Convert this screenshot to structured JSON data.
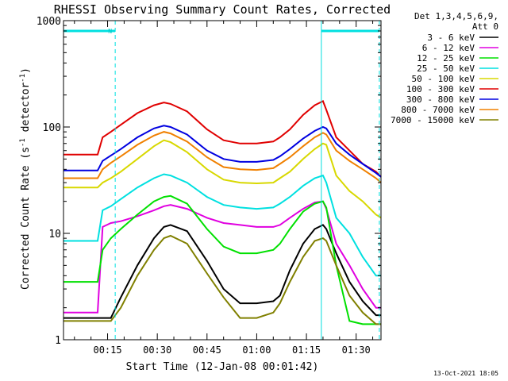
{
  "chart_data": {
    "type": "line",
    "title": "RHESSI Observing Summary Count Rates, Corrected",
    "xlabel": "Start Time (12-Jan-08 00:01:42)",
    "ylabel_main": "Corrected Count Rate (s",
    "ylabel_sup1": "-1",
    "ylabel_mid": " detector",
    "ylabel_sup2": "-1",
    "ylabel_end": ")",
    "yscale": "log",
    "ylim": [
      1,
      1000
    ],
    "xlim_minutes": [
      1.7,
      97.5
    ],
    "x_ticks": [
      {
        "v": 15,
        "label": "00:15"
      },
      {
        "v": 30,
        "label": "00:30"
      },
      {
        "v": 45,
        "label": "00:45"
      },
      {
        "v": 60,
        "label": "01:00"
      },
      {
        "v": 75,
        "label": "01:15"
      },
      {
        "v": 90,
        "label": "01:30"
      }
    ],
    "y_ticks": [
      {
        "v": 1,
        "label": "1"
      },
      {
        "v": 10,
        "label": "10"
      },
      {
        "v": 100,
        "label": "100"
      },
      {
        "v": 1000,
        "label": "1000"
      }
    ],
    "legend_header": [
      "Det 1,3,4,5,6,9,",
      "Att 0"
    ],
    "legend_position": "right",
    "timestamp": "13-Oct-2021 18:05",
    "flag_label": "N",
    "night_periods": [
      {
        "start": 1.7,
        "end": 17.3,
        "label": "N"
      },
      {
        "start": 79.5,
        "end": 97.0,
        "label": ""
      }
    ],
    "night_level": 800,
    "vertical_markers": [
      17.3,
      79.5,
      97.0
    ],
    "solid_marker": 79.5,
    "series": [
      {
        "name": "3 - 6 keV",
        "color": "#000000",
        "x": [
          1.7,
          12,
          13.5,
          16,
          19,
          24,
          29,
          32,
          34,
          39,
          45,
          50,
          55,
          60,
          65,
          67,
          70,
          74,
          77.5,
          80,
          81,
          84,
          88,
          92,
          96,
          97.5
        ],
        "y": [
          1.6,
          1.6,
          1.6,
          1.6,
          2.5,
          5.0,
          9.0,
          11.5,
          12.0,
          10.5,
          5.5,
          3.0,
          2.2,
          2.2,
          2.3,
          2.6,
          4.5,
          8.0,
          11.0,
          12.0,
          11.0,
          6.5,
          3.5,
          2.3,
          1.7,
          1.7
        ]
      },
      {
        "name": "6 - 12 keV",
        "color": "#e000e0",
        "x": [
          1.7,
          12,
          13.5,
          16,
          19,
          24,
          29,
          32,
          34,
          39,
          45,
          50,
          55,
          60,
          65,
          67,
          70,
          74,
          77.5,
          80,
          81,
          84,
          88,
          92,
          96,
          97.5
        ],
        "y": [
          1.8,
          1.8,
          11.5,
          12.5,
          13.0,
          14.5,
          16.5,
          18.0,
          18.5,
          17.0,
          14.0,
          12.5,
          12.0,
          11.5,
          11.5,
          12.0,
          14.0,
          17.0,
          19.5,
          20.0,
          17.0,
          8.0,
          5.0,
          3.0,
          2.0,
          2.0
        ]
      },
      {
        "name": "12 - 25 keV",
        "color": "#00e000",
        "x": [
          1.7,
          12,
          13.5,
          16,
          19,
          24,
          29,
          32,
          34,
          39,
          45,
          50,
          55,
          60,
          65,
          67,
          70,
          74,
          77.5,
          80,
          81,
          84,
          88,
          92,
          96,
          97.5
        ],
        "y": [
          3.5,
          3.5,
          7.0,
          9.0,
          11.0,
          15.0,
          20.0,
          22.0,
          22.5,
          19.0,
          11.0,
          7.5,
          6.5,
          6.5,
          7.0,
          8.0,
          11.0,
          16.0,
          19.0,
          20.0,
          17.5,
          5.0,
          1.5,
          1.4,
          1.4,
          1.4
        ]
      },
      {
        "name": "25 - 50 keV",
        "color": "#00e0e0",
        "x": [
          1.7,
          12,
          13.5,
          16,
          19,
          24,
          29,
          32,
          34,
          39,
          45,
          50,
          55,
          60,
          65,
          67,
          70,
          74,
          77.5,
          80,
          81,
          84,
          88,
          92,
          96,
          97.5
        ],
        "y": [
          8.5,
          8.5,
          16.5,
          18.0,
          21.0,
          27.0,
          33.0,
          36.0,
          35.0,
          30.0,
          22.0,
          18.5,
          17.5,
          17.0,
          17.5,
          19.0,
          22.0,
          28.0,
          33.0,
          35.0,
          30.0,
          14.0,
          10.0,
          6.0,
          4.0,
          4.0
        ]
      },
      {
        "name": "50 - 100 keV",
        "color": "#d8d800",
        "x": [
          1.7,
          12,
          13.5,
          16,
          19,
          24,
          29,
          32,
          34,
          39,
          45,
          50,
          55,
          60,
          65,
          67,
          70,
          74,
          77.5,
          80,
          81,
          84,
          88,
          92,
          96,
          97.5
        ],
        "y": [
          27.0,
          27.0,
          30.0,
          33.0,
          38.0,
          50.0,
          66.0,
          75.0,
          72.0,
          58.0,
          40.0,
          32.0,
          30.0,
          29.5,
          30.0,
          33.0,
          38.0,
          50.0,
          62.0,
          70.0,
          68.0,
          35.0,
          25.0,
          20.0,
          15.0,
          14.0
        ]
      },
      {
        "name": "100 - 300 keV",
        "color": "#e00000",
        "x": [
          1.7,
          12,
          13.5,
          16,
          19,
          24,
          29,
          32,
          34,
          39,
          45,
          50,
          55,
          60,
          65,
          67,
          70,
          74,
          77.5,
          80,
          81,
          84,
          88,
          92,
          96,
          97.5
        ],
        "y": [
          55.0,
          55.0,
          80.0,
          90.0,
          105.0,
          135.0,
          160.0,
          170.0,
          165.0,
          140.0,
          95.0,
          75.0,
          70.0,
          70.0,
          73.0,
          80.0,
          95.0,
          130.0,
          160.0,
          175.0,
          145.0,
          80.0,
          60.0,
          45.0,
          38.0,
          34.0
        ]
      },
      {
        "name": "300 - 800 keV",
        "color": "#0000e0",
        "x": [
          1.7,
          12,
          13.5,
          16,
          19,
          24,
          29,
          32,
          34,
          39,
          45,
          50,
          55,
          60,
          65,
          67,
          70,
          74,
          77.5,
          80,
          81,
          84,
          88,
          92,
          96,
          97.5
        ],
        "y": [
          39.0,
          39.0,
          48.0,
          54.0,
          62.0,
          80.0,
          97.0,
          103.0,
          100.0,
          85.0,
          60.0,
          50.0,
          47.0,
          47.0,
          49.0,
          53.0,
          62.0,
          78.0,
          92.0,
          100.0,
          97.0,
          70.0,
          55.0,
          45.0,
          37.0,
          34.0
        ]
      },
      {
        "name": "800 - 7000 keV",
        "color": "#f08000",
        "x": [
          1.7,
          12,
          13.5,
          16,
          19,
          24,
          29,
          32,
          34,
          39,
          45,
          50,
          55,
          60,
          65,
          67,
          70,
          74,
          77.5,
          80,
          81,
          84,
          88,
          92,
          96,
          97.5
        ],
        "y": [
          33.0,
          33.0,
          40.0,
          46.0,
          53.0,
          68.0,
          83.0,
          90.0,
          87.0,
          73.0,
          52.0,
          42.0,
          40.0,
          39.5,
          41.0,
          45.0,
          52.0,
          66.0,
          80.0,
          88.0,
          85.0,
          60.0,
          48.0,
          40.0,
          33.0,
          30.0
        ]
      },
      {
        "name": "7000 - 15000 keV",
        "color": "#808000",
        "x": [
          1.7,
          12,
          13.5,
          16,
          19,
          24,
          29,
          32,
          34,
          39,
          45,
          50,
          55,
          60,
          65,
          67,
          70,
          74,
          77.5,
          80,
          81,
          84,
          88,
          92,
          96,
          97.5
        ],
        "y": [
          1.5,
          1.5,
          1.5,
          1.5,
          2.0,
          4.0,
          7.0,
          9.0,
          9.5,
          8.0,
          4.2,
          2.5,
          1.6,
          1.6,
          1.8,
          2.2,
          3.5,
          6.0,
          8.5,
          9.0,
          8.5,
          5.0,
          2.6,
          1.8,
          1.4,
          1.4
        ]
      }
    ]
  }
}
